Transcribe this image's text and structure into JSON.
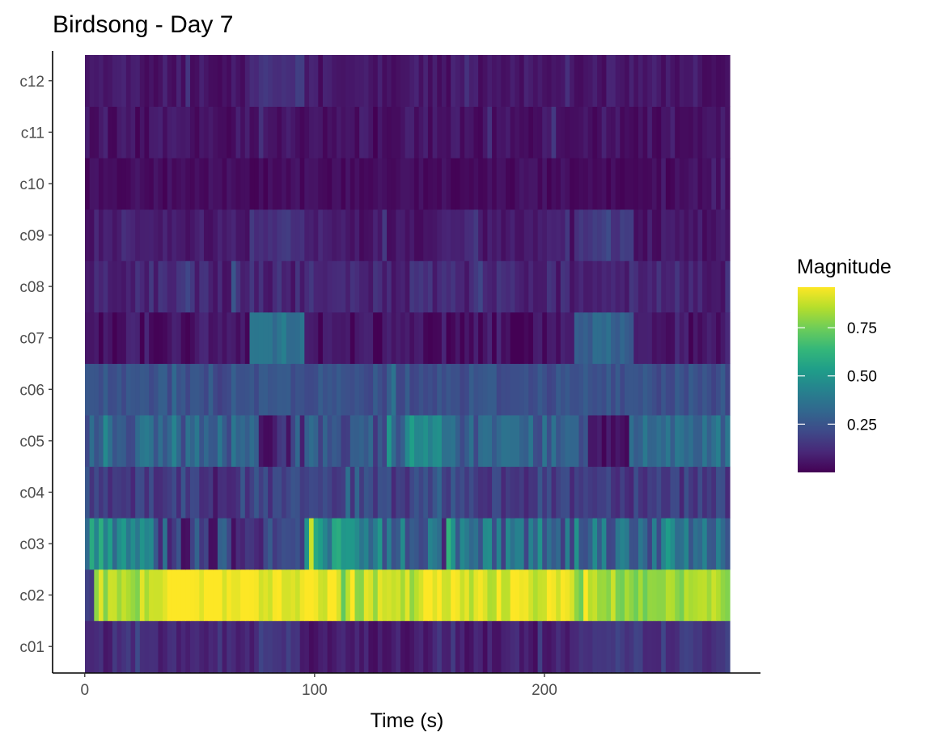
{
  "chart_data": {
    "type": "heatmap",
    "title": "Birdsong - Day 7",
    "xlabel": "Time (s)",
    "ylabel": "",
    "xlim": [
      -14,
      294
    ],
    "x_ticks": [
      "0",
      "100",
      "200"
    ],
    "x_tick_values": [
      0,
      100,
      200
    ],
    "x_start": 0,
    "x_end": 282,
    "x_step": 2,
    "categories": [
      "c01",
      "c02",
      "c03",
      "c04",
      "c05",
      "c06",
      "c07",
      "c08",
      "c09",
      "c10",
      "c11",
      "c12"
    ],
    "rows": [
      {
        "name": "c01",
        "segments": [
          [
            0,
            74,
            0.1
          ],
          [
            74,
            94,
            0.17
          ],
          [
            94,
            174,
            0.07
          ],
          [
            174,
            214,
            0.08
          ],
          [
            214,
            282,
            0.15
          ]
        ],
        "var": 0.05
      },
      {
        "name": "c02",
        "segments": [
          [
            0,
            3,
            0.12
          ],
          [
            3,
            30,
            0.85
          ],
          [
            30,
            112,
            0.95
          ],
          [
            112,
            145,
            0.85
          ],
          [
            145,
            214,
            0.92
          ],
          [
            214,
            282,
            0.82
          ]
        ],
        "var": 0.08
      },
      {
        "name": "c03",
        "segments": [
          [
            0,
            30,
            0.5
          ],
          [
            30,
            95,
            0.2
          ],
          [
            95,
            112,
            0.45
          ],
          [
            112,
            282,
            0.35
          ]
        ],
        "var": 0.18
      },
      {
        "name": "c04",
        "segments": [
          [
            0,
            282,
            0.18
          ]
        ],
        "var": 0.08
      },
      {
        "name": "c05",
        "segments": [
          [
            0,
            75,
            0.3
          ],
          [
            75,
            95,
            0.12
          ],
          [
            95,
            140,
            0.25
          ],
          [
            140,
            155,
            0.4
          ],
          [
            155,
            220,
            0.3
          ],
          [
            220,
            238,
            0.08
          ],
          [
            238,
            282,
            0.35
          ]
        ],
        "var": 0.1
      },
      {
        "name": "c06",
        "segments": [
          [
            0,
            282,
            0.24
          ]
        ],
        "var": 0.05
      },
      {
        "name": "c07",
        "segments": [
          [
            0,
            72,
            0.05
          ],
          [
            72,
            95,
            0.38
          ],
          [
            95,
            214,
            0.05
          ],
          [
            214,
            240,
            0.3
          ],
          [
            240,
            282,
            0.06
          ]
        ],
        "var": 0.06
      },
      {
        "name": "c08",
        "segments": [
          [
            0,
            282,
            0.1
          ]
        ],
        "var": 0.06
      },
      {
        "name": "c09",
        "segments": [
          [
            0,
            72,
            0.07
          ],
          [
            72,
            95,
            0.14
          ],
          [
            95,
            214,
            0.06
          ],
          [
            214,
            240,
            0.16
          ],
          [
            240,
            282,
            0.06
          ]
        ],
        "var": 0.04
      },
      {
        "name": "c10",
        "segments": [
          [
            0,
            282,
            0.03
          ]
        ],
        "var": 0.03
      },
      {
        "name": "c11",
        "segments": [
          [
            0,
            282,
            0.05
          ]
        ],
        "var": 0.04
      },
      {
        "name": "c12",
        "segments": [
          [
            0,
            72,
            0.06
          ],
          [
            72,
            95,
            0.14
          ],
          [
            95,
            282,
            0.06
          ]
        ],
        "var": 0.04
      }
    ],
    "legend": {
      "title": "Magnitude",
      "ticks": [
        "0.25",
        "0.50",
        "0.75"
      ],
      "tick_values": [
        0.25,
        0.5,
        0.75
      ],
      "min": 0.0,
      "max": 0.96,
      "position": "right"
    },
    "colormap": [
      "#440154",
      "#482878",
      "#3E4A89",
      "#31688E",
      "#26828E",
      "#1F9E89",
      "#35B779",
      "#6DCD59",
      "#B4DE2C",
      "#FDE725"
    ],
    "grid": false
  }
}
